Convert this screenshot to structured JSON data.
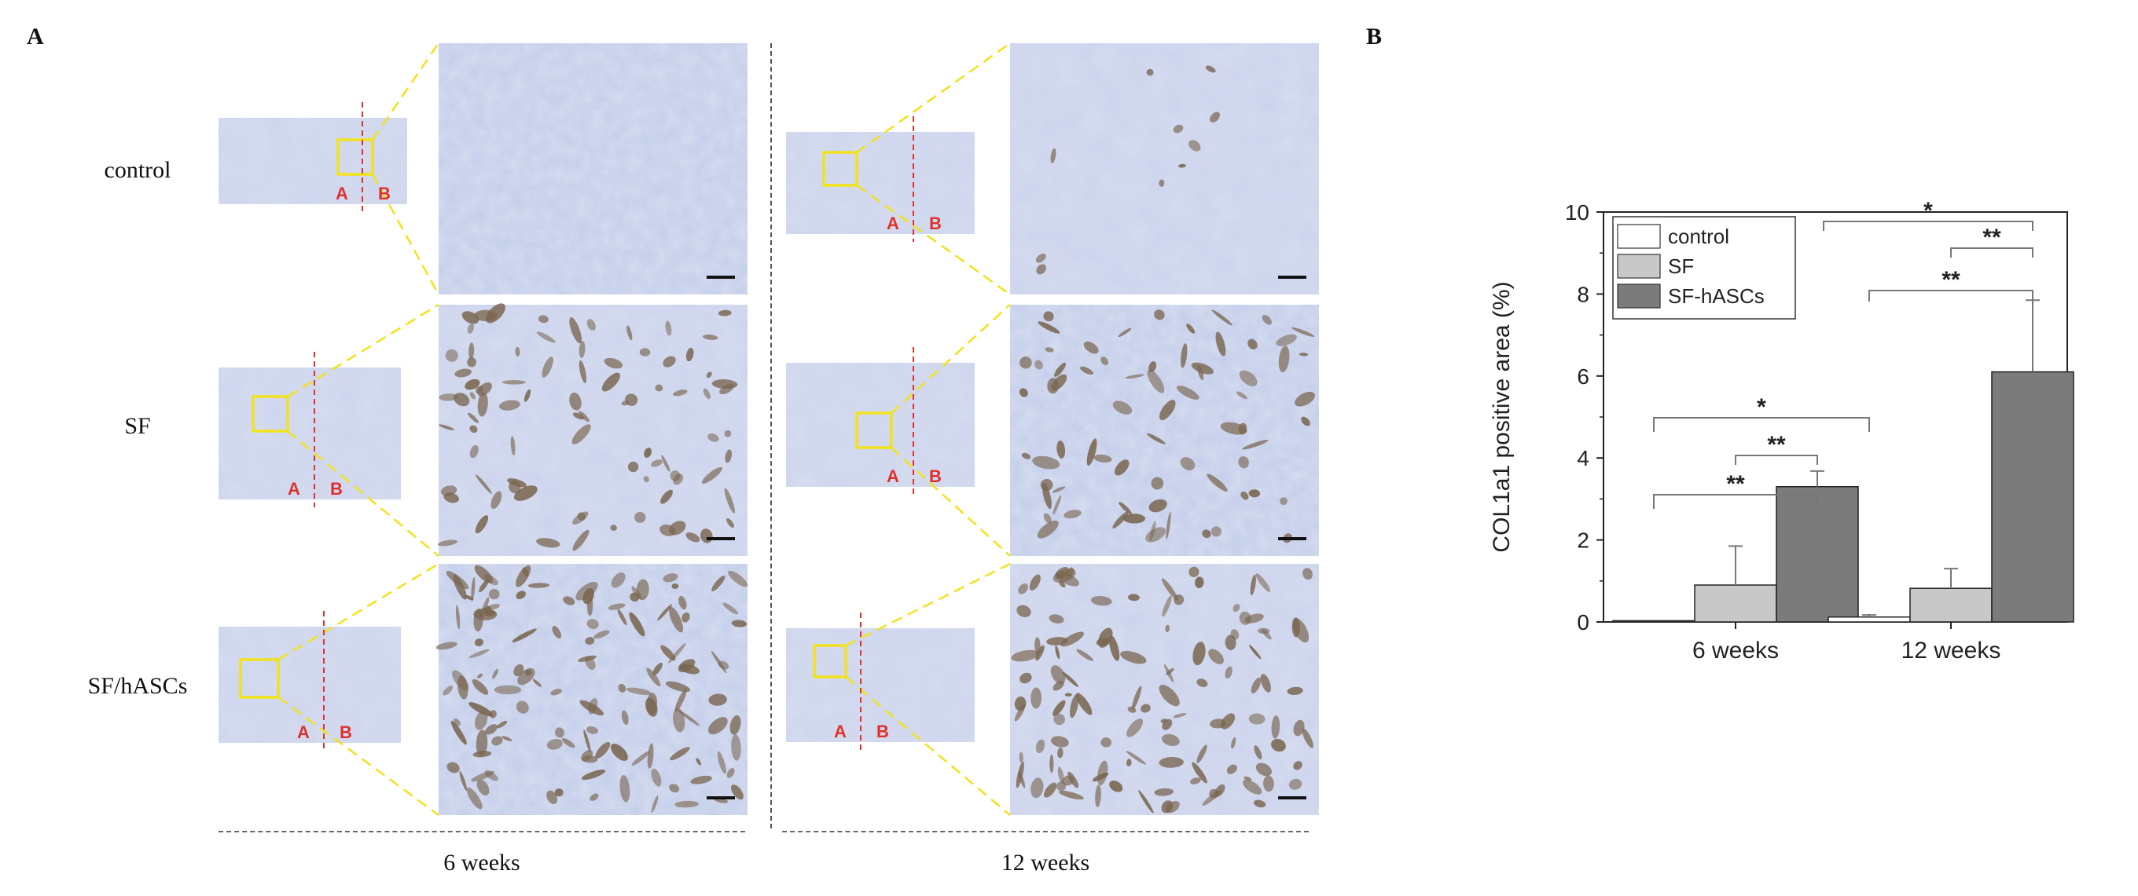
{
  "panel_a": {
    "letter": "A",
    "rows": [
      "control",
      "SF",
      "SF/hASCs"
    ],
    "columns": [
      "6 weeks",
      "12 weeks"
    ],
    "region_labels": [
      "A",
      "B"
    ],
    "colors": {
      "stain_background": "#d6ddf0",
      "stain_blue": "#98a9d8",
      "collagen_brown": "#7a6650",
      "zoom_box": "#f2e21c",
      "divider": "#e0302a"
    }
  },
  "panel_b": {
    "letter": "B",
    "significance": [
      "*",
      "**",
      "**",
      "*",
      "**",
      "**"
    ]
  },
  "chart_data": {
    "type": "bar",
    "title": "",
    "categories": [
      "6 weeks",
      "12 weeks"
    ],
    "series": [
      {
        "name": "control",
        "values": [
          0.03,
          0.12
        ],
        "errors": [
          0.0,
          0.05
        ],
        "color": "#ffffff"
      },
      {
        "name": "SF",
        "values": [
          0.9,
          0.82
        ],
        "errors": [
          0.95,
          0.48
        ],
        "color": "#c8c8c8"
      },
      {
        "name": "SF-hASCs",
        "values": [
          3.3,
          6.1
        ],
        "errors": [
          0.38,
          1.75
        ],
        "color": "#7b7b7b"
      }
    ],
    "xlabel": "",
    "ylabel": "COL1a1 positive area (%)",
    "ylim": [
      0,
      10
    ],
    "yticks": [
      0,
      2,
      4,
      6,
      8,
      10
    ],
    "legend_position": "top-left",
    "grid": false
  }
}
